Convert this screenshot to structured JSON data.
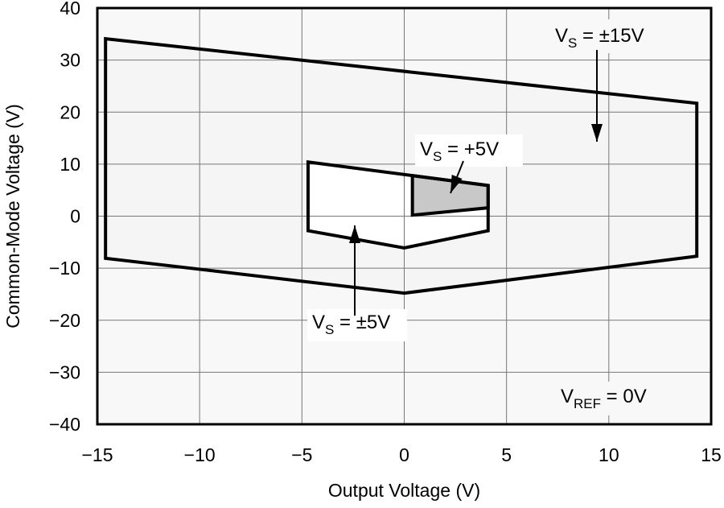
{
  "chart_data": {
    "type": "area",
    "title": "",
    "xlabel": "Output Voltage (V)",
    "ylabel": "Common-Mode Voltage (V)",
    "xlim": [
      -15,
      15
    ],
    "ylim": [
      -40,
      40
    ],
    "xticks": [
      -15,
      -10,
      -5,
      0,
      5,
      10,
      15
    ],
    "xtick_labels": [
      "−15",
      "−10",
      "−5",
      "0",
      "5",
      "10",
      "15"
    ],
    "yticks": [
      -40,
      -30,
      -20,
      -10,
      0,
      10,
      20,
      30,
      40
    ],
    "ytick_labels": [
      "−40",
      "−30",
      "−20",
      "−10",
      "0",
      "10",
      "20",
      "30",
      "40"
    ],
    "grid": true,
    "series": [
      {
        "label_main": "V",
        "label_sub": "S",
        "label_rest": " = ±15V",
        "fill": "#f5f5f5",
        "points": [
          [
            -14.6,
            34.1
          ],
          [
            14.3,
            21.7
          ],
          [
            14.3,
            -7.7
          ],
          [
            0,
            -14.8
          ],
          [
            -14.6,
            -8.1
          ]
        ]
      },
      {
        "label_main": "V",
        "label_sub": "S",
        "label_rest": " = ±5V",
        "fill": "#ffffff",
        "points": [
          [
            -4.7,
            10.4
          ],
          [
            4.1,
            5.9
          ],
          [
            4.1,
            -2.8
          ],
          [
            0,
            -6.1
          ],
          [
            -4.7,
            -2.8
          ]
        ]
      },
      {
        "label_main": "V",
        "label_sub": "S",
        "label_rest": " = +5V",
        "fill": "#c8c8c8",
        "points": [
          [
            0.4,
            7.8
          ],
          [
            4.1,
            5.9
          ],
          [
            4.1,
            1.6
          ],
          [
            0.4,
            0.2
          ]
        ]
      }
    ],
    "annotation": {
      "main": "V",
      "sub": "REF",
      "rest": " = 0V"
    }
  }
}
